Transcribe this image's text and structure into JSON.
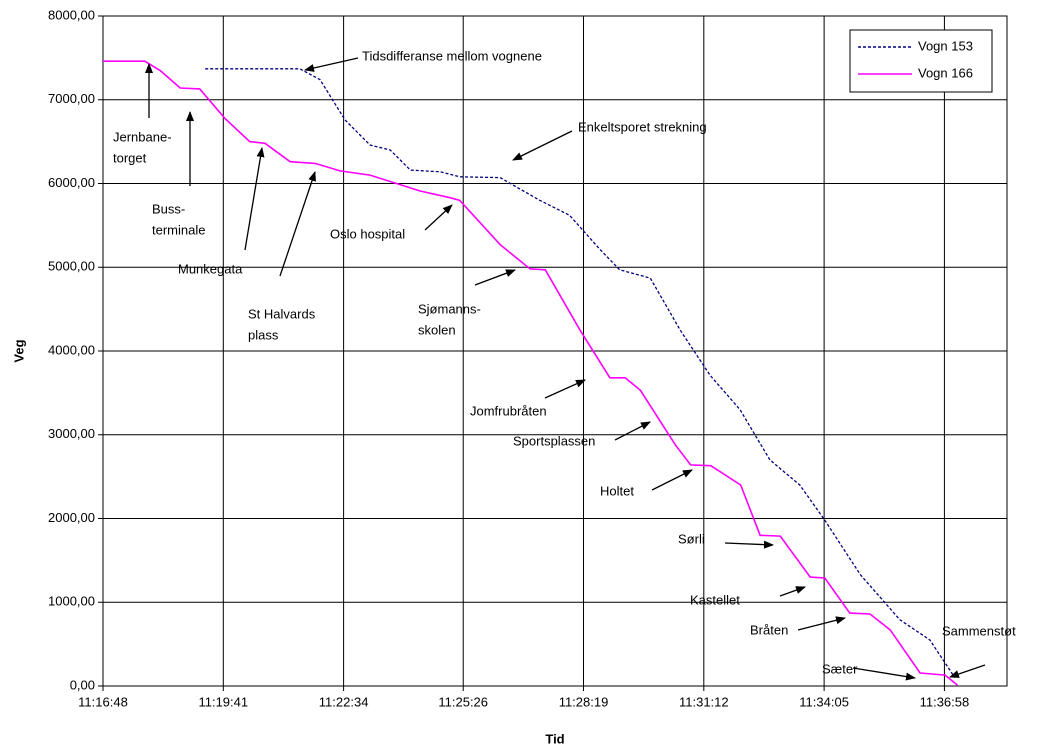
{
  "chart_data": {
    "type": "line",
    "x_label": "Tid",
    "y_label": "Veg",
    "xlim": [
      "11:16:48",
      "11:38:28"
    ],
    "xticks": [
      "11:16:48",
      "11:19:41",
      "11:22:34",
      "11:25:26",
      "11:28:19",
      "11:31:12",
      "11:34:05",
      "11:36:58"
    ],
    "ylim": [
      0,
      8000
    ],
    "yticks": [
      {
        "value": 0,
        "label": "0,00"
      },
      {
        "value": 1000,
        "label": "1000,00"
      },
      {
        "value": 2000,
        "label": "2000,00"
      },
      {
        "value": 3000,
        "label": "3000,00"
      },
      {
        "value": 4000,
        "label": "4000,00"
      },
      {
        "value": 5000,
        "label": "5000,00"
      },
      {
        "value": 6000,
        "label": "6000,00"
      },
      {
        "value": 7000,
        "label": "7000,00"
      },
      {
        "value": 8000,
        "label": "8000,00"
      }
    ],
    "grid": true,
    "legend": "top-right",
    "series": [
      {
        "name": "Vogn 153",
        "color": "#000080",
        "dashed": true,
        "x": [
          "11:19:15",
          "11:21:31",
          "11:22:00",
          "11:22:36",
          "11:23:12",
          "11:23:41",
          "11:24:10",
          "11:24:53",
          "11:25:21",
          "11:26:19",
          "11:27:16",
          "11:27:59",
          "11:28:43",
          "11:29:11",
          "11:29:55",
          "11:30:38",
          "11:31:21",
          "11:32:04",
          "11:32:47",
          "11:33:30",
          "11:34:06",
          "11:34:57",
          "11:35:54",
          "11:36:37",
          "11:37:13"
        ],
        "values": [
          7370,
          7370,
          7240,
          6760,
          6460,
          6400,
          6160,
          6140,
          6080,
          6070,
          5800,
          5620,
          5210,
          4970,
          4870,
          4250,
          3710,
          3300,
          2700,
          2400,
          1980,
          1330,
          790,
          550,
          100
        ]
      },
      {
        "name": "Vogn 166",
        "color": "#ff00ff",
        "dashed": false,
        "x": [
          "11:16:48",
          "11:17:48",
          "11:18:10",
          "11:18:39",
          "11:19:07",
          "11:19:43",
          "11:20:19",
          "11:20:41",
          "11:21:17",
          "11:21:53",
          "11:22:29",
          "11:23:12",
          "11:24:24",
          "11:25:07",
          "11:25:21",
          "11:26:19",
          "11:27:02",
          "11:27:24",
          "11:28:14",
          "11:28:57",
          "11:29:19",
          "11:29:41",
          "11:30:31",
          "11:30:53",
          "11:31:22",
          "11:32:05",
          "11:32:33",
          "11:33:02",
          "11:33:45",
          "11:34:06",
          "11:34:42",
          "11:35:11",
          "11:35:40",
          "11:36:23",
          "11:36:59",
          "11:37:17"
        ],
        "values": [
          7460,
          7460,
          7350,
          7140,
          7130,
          6780,
          6500,
          6480,
          6260,
          6240,
          6150,
          6100,
          5910,
          5830,
          5800,
          5270,
          4980,
          4970,
          4250,
          3680,
          3680,
          3530,
          2880,
          2640,
          2630,
          2400,
          1800,
          1790,
          1300,
          1290,
          870,
          860,
          670,
          155,
          130,
          10
        ]
      }
    ],
    "annotations": [
      {
        "lines": [
          "Tidsdifferanse mellom vognene"
        ]
      },
      {
        "lines": [
          "Enkeltsporet strekning"
        ]
      },
      {
        "lines": [
          "Jernbane-",
          "torget"
        ]
      },
      {
        "lines": [
          "Buss-",
          "terminale"
        ]
      },
      {
        "lines": [
          "Munkegata"
        ]
      },
      {
        "lines": [
          "St Halvards",
          "plass"
        ]
      },
      {
        "lines": [
          "Oslo hospital"
        ]
      },
      {
        "lines": [
          "Sjømanns-",
          "skolen"
        ]
      },
      {
        "lines": [
          "Jomfrubråten"
        ]
      },
      {
        "lines": [
          "Sportsplassen"
        ]
      },
      {
        "lines": [
          "Holtet"
        ]
      },
      {
        "lines": [
          "Sørli"
        ]
      },
      {
        "lines": [
          "Kastellet"
        ]
      },
      {
        "lines": [
          "Bråten"
        ]
      },
      {
        "lines": [
          "Sammenstøt"
        ]
      },
      {
        "lines": [
          "Sæter"
        ]
      }
    ]
  }
}
